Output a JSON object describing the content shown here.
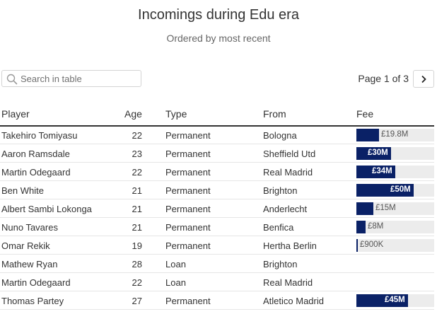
{
  "title": "Incomings during Edu era",
  "subtitle": "Ordered by most recent",
  "search": {
    "placeholder": "Search in table"
  },
  "pager": {
    "label": "Page 1 of 3"
  },
  "columns": {
    "player": "Player",
    "age": "Age",
    "type": "Type",
    "from": "From",
    "fee": "Fee"
  },
  "colors": {
    "fee_bar": "#0a2166",
    "bar_track": "#ececec"
  },
  "fee_scale_max_millions": 68,
  "rows": [
    {
      "player": "Takehiro Tomiyasu",
      "age": "22",
      "type": "Permanent",
      "from": "Bologna",
      "fee": "£19.8M",
      "fee_value": 19.8
    },
    {
      "player": "Aaron Ramsdale",
      "age": "23",
      "type": "Permanent",
      "from": "Sheffield Utd",
      "fee": "£30M",
      "fee_value": 30
    },
    {
      "player": "Martin Odegaard",
      "age": "22",
      "type": "Permanent",
      "from": "Real Madrid",
      "fee": "£34M",
      "fee_value": 34
    },
    {
      "player": "Ben White",
      "age": "21",
      "type": "Permanent",
      "from": "Brighton",
      "fee": "£50M",
      "fee_value": 50
    },
    {
      "player": "Albert Sambi Lokonga",
      "age": "21",
      "type": "Permanent",
      "from": "Anderlecht",
      "fee": "£15M",
      "fee_value": 15
    },
    {
      "player": "Nuno Tavares",
      "age": "21",
      "type": "Permanent",
      "from": "Benfica",
      "fee": "£8M",
      "fee_value": 8
    },
    {
      "player": "Omar Rekik",
      "age": "19",
      "type": "Permanent",
      "from": "Hertha Berlin",
      "fee": "£900K",
      "fee_value": 0.9
    },
    {
      "player": "Mathew Ryan",
      "age": "28",
      "type": "Loan",
      "from": "Brighton",
      "fee": "",
      "fee_value": null
    },
    {
      "player": "Martin Odegaard",
      "age": "22",
      "type": "Loan",
      "from": "Real Madrid",
      "fee": "",
      "fee_value": null
    },
    {
      "player": "Thomas Partey",
      "age": "27",
      "type": "Permanent",
      "from": "Atletico Madrid",
      "fee": "£45M",
      "fee_value": 45
    }
  ]
}
